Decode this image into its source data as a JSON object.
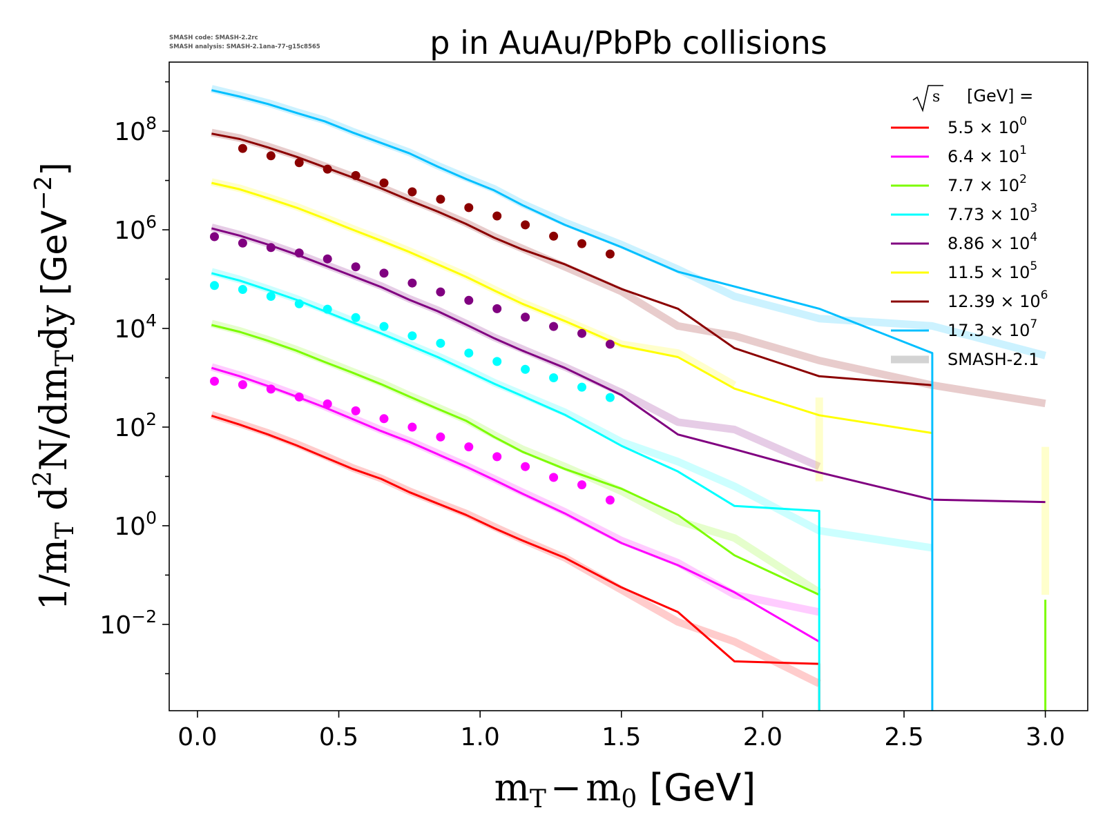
{
  "figure": {
    "version_lines": [
      "SMASH code:      SMASH-2.2rc",
      "SMASH analysis: SMASH-2.1ana-77-g15c8565"
    ]
  },
  "chart_data": {
    "type": "line",
    "title": "p in AuAu/PbPb collisions",
    "xlabel": "m_T − m_0 [GeV]",
    "ylabel": "1/m_T d²N/dm_T dy [GeV⁻²]",
    "xlabel_parts": {
      "main": "m",
      "sub1": "T",
      "minus": "−",
      "sub2_base": "m",
      "sub2": "0",
      "unit": "[GeV]"
    },
    "ylabel_parts": {
      "prefix": "1/m",
      "sub": "T",
      "d": " d",
      "sup": "2",
      "mid": "N/dm",
      "sub2": "T",
      "tail": "dy",
      "unit": "[GeV",
      "unit_sup": "−2",
      "unit_close": "]"
    },
    "xlim": [
      -0.1,
      3.15
    ],
    "ylim_log10": [
      -3.75,
      9.4
    ],
    "y_scale": "log",
    "xticks": [
      0.0,
      0.5,
      1.0,
      1.5,
      2.0,
      2.5,
      3.0
    ],
    "xtick_labels": [
      "0.0",
      "0.5",
      "1.0",
      "1.5",
      "2.0",
      "2.5",
      "3.0"
    ],
    "yticks_log10": [
      -2,
      0,
      2,
      4,
      6,
      8
    ],
    "ytick_labels": [
      {
        "base": "10",
        "exp": "−2"
      },
      {
        "base": "10",
        "exp": "0"
      },
      {
        "base": "10",
        "exp": "2"
      },
      {
        "base": "10",
        "exp": "4"
      },
      {
        "base": "10",
        "exp": "6"
      },
      {
        "base": "10",
        "exp": "8"
      }
    ],
    "grid": false,
    "legend": {
      "placement": "top-right",
      "header": "[GeV] =",
      "header_sqrt": "s",
      "entries": [
        {
          "base": "5.5",
          "times": "×",
          "pow": "10",
          "exp": "0",
          "color": "#ff0000"
        },
        {
          "base": "6.4",
          "times": "×",
          "pow": "10",
          "exp": "1",
          "color": "#ff00ff"
        },
        {
          "base": "7.7",
          "times": "×",
          "pow": "10",
          "exp": "2",
          "color": "#7cfc00"
        },
        {
          "base": "7.73",
          "times": "×",
          "pow": "10",
          "exp": "3",
          "color": "#00ffff"
        },
        {
          "base": "8.86",
          "times": "×",
          "pow": "10",
          "exp": "4",
          "color": "#800080"
        },
        {
          "base": "11.5",
          "times": "×",
          "pow": "10",
          "exp": "5",
          "color": "#ffff00"
        },
        {
          "base": "12.39",
          "times": "×",
          "pow": "10",
          "exp": "6",
          "color": "#8b0000"
        },
        {
          "base": "17.3",
          "times": "×",
          "pow": "10",
          "exp": "7",
          "color": "#00bfff"
        }
      ],
      "smash_entry": {
        "label": "SMASH-2.1",
        "color": "#c8c8c8"
      }
    },
    "series": [
      {
        "color": "#ff0000",
        "sim_x": [
          0.05,
          0.15,
          0.25,
          0.35,
          0.45,
          0.55,
          0.65,
          0.75,
          0.85,
          0.95,
          1.05,
          1.15,
          1.3,
          1.5,
          1.7,
          1.9,
          2.2
        ],
        "sim_log10": [
          2.23,
          2.05,
          1.85,
          1.63,
          1.39,
          1.15,
          0.95,
          0.68,
          0.45,
          0.22,
          -0.05,
          -0.3,
          -0.65,
          -1.25,
          -1.75,
          -2.75,
          -2.8
        ],
        "sim_drop_to_bottom": true,
        "ref_x": [
          0.05,
          0.15,
          0.25,
          0.35,
          0.45,
          0.55,
          0.65,
          0.75,
          0.85,
          0.95,
          1.05,
          1.15,
          1.3,
          1.5,
          1.7,
          1.9,
          2.2
        ],
        "ref_log10": [
          2.25,
          2.07,
          1.88,
          1.66,
          1.42,
          1.17,
          0.96,
          0.7,
          0.47,
          0.25,
          -0.02,
          -0.28,
          -0.65,
          -1.3,
          -1.95,
          -2.35,
          -3.2
        ],
        "data_x": [],
        "data_log10": []
      },
      {
        "color": "#ff00ff",
        "sim_x": [
          0.05,
          0.15,
          0.25,
          0.35,
          0.45,
          0.55,
          0.65,
          0.75,
          0.85,
          0.95,
          1.05,
          1.15,
          1.3,
          1.5,
          1.7,
          1.9,
          2.2
        ],
        "sim_log10": [
          3.2,
          3.03,
          2.83,
          2.62,
          2.4,
          2.16,
          1.92,
          1.7,
          1.45,
          1.2,
          0.93,
          0.65,
          0.25,
          -0.35,
          -0.8,
          -1.35,
          -2.35
        ],
        "ref_x": [
          0.05,
          0.15,
          0.25,
          0.35,
          0.45,
          0.55,
          0.65,
          0.75,
          0.85,
          0.95,
          1.05,
          1.15,
          1.3,
          1.5,
          1.7,
          1.9,
          2.2
        ],
        "ref_log10": [
          3.22,
          3.05,
          2.86,
          2.65,
          2.42,
          2.18,
          1.94,
          1.72,
          1.47,
          1.22,
          0.95,
          0.68,
          0.28,
          -0.3,
          -0.75,
          -1.4,
          -1.75
        ],
        "data_x": [
          0.06,
          0.16,
          0.26,
          0.36,
          0.46,
          0.56,
          0.66,
          0.76,
          0.86,
          0.96,
          1.06,
          1.16,
          1.26,
          1.36,
          1.46
        ],
        "data_log10": [
          2.93,
          2.86,
          2.77,
          2.61,
          2.47,
          2.33,
          2.17,
          2.0,
          1.8,
          1.6,
          1.4,
          1.2,
          0.98,
          0.83,
          0.52
        ]
      },
      {
        "color": "#7cfc00",
        "sim_x": [
          0.05,
          0.15,
          0.25,
          0.35,
          0.45,
          0.55,
          0.65,
          0.75,
          0.85,
          0.95,
          1.05,
          1.15,
          1.3,
          1.5,
          1.7,
          1.9,
          2.2
        ],
        "sim_log10": [
          4.07,
          3.93,
          3.75,
          3.55,
          3.32,
          3.1,
          2.87,
          2.62,
          2.37,
          2.13,
          1.8,
          1.5,
          1.15,
          0.75,
          0.22,
          -0.6,
          -1.4
        ],
        "ref_x": [
          0.05,
          0.15,
          0.25,
          0.35,
          0.45,
          0.55,
          0.65,
          0.75,
          0.85,
          0.95,
          1.05,
          1.15,
          1.3,
          1.5,
          1.7,
          1.9,
          2.2
        ],
        "ref_log10": [
          4.1,
          3.95,
          3.77,
          3.57,
          3.35,
          3.12,
          2.9,
          2.64,
          2.4,
          2.15,
          1.84,
          1.55,
          1.2,
          0.7,
          0.1,
          -0.25,
          -1.35
        ],
        "extra_vertical": {
          "x": 3.0,
          "from_log10": -1.5,
          "to_log10": -3.75
        },
        "data_x": [],
        "data_log10": []
      },
      {
        "color": "#00ffff",
        "sim_x": [
          0.05,
          0.15,
          0.25,
          0.35,
          0.45,
          0.55,
          0.65,
          0.75,
          0.85,
          0.95,
          1.05,
          1.15,
          1.3,
          1.5,
          1.7,
          1.9,
          2.2
        ],
        "sim_log10": [
          5.12,
          4.97,
          4.78,
          4.58,
          4.35,
          4.12,
          3.9,
          3.66,
          3.42,
          3.15,
          2.88,
          2.63,
          2.25,
          1.62,
          1.1,
          0.4,
          0.3
        ],
        "sim_drop_to_bottom": true,
        "ref_x": [
          0.05,
          0.15,
          0.25,
          0.35,
          0.45,
          0.55,
          0.65,
          0.75,
          0.85,
          0.95,
          1.05,
          1.15,
          1.3,
          1.5,
          1.7,
          1.9,
          2.2,
          2.6
        ],
        "ref_log10": [
          5.15,
          4.99,
          4.8,
          4.6,
          4.38,
          4.15,
          3.93,
          3.68,
          3.44,
          3.18,
          2.9,
          2.66,
          2.3,
          1.7,
          1.3,
          0.8,
          -0.1,
          -0.45
        ],
        "data_x": [
          0.06,
          0.16,
          0.26,
          0.36,
          0.46,
          0.56,
          0.66,
          0.76,
          0.86,
          0.96,
          1.06,
          1.16,
          1.26,
          1.36,
          1.46
        ],
        "data_log10": [
          4.87,
          4.79,
          4.65,
          4.5,
          4.39,
          4.22,
          4.04,
          3.85,
          3.7,
          3.5,
          3.33,
          3.17,
          3.0,
          2.81,
          2.6
        ]
      },
      {
        "color": "#800080",
        "sim_x": [
          0.05,
          0.15,
          0.25,
          0.35,
          0.45,
          0.55,
          0.65,
          0.75,
          0.85,
          0.95,
          1.05,
          1.15,
          1.3,
          1.5,
          1.7,
          1.9,
          2.2,
          2.6,
          3.0
        ],
        "sim_log10": [
          6.03,
          5.88,
          5.7,
          5.5,
          5.28,
          5.06,
          4.84,
          4.58,
          4.35,
          4.08,
          3.8,
          3.55,
          3.2,
          2.65,
          1.85,
          1.55,
          1.08,
          0.53,
          0.48
        ],
        "ref_x": [
          0.05,
          0.15,
          0.25,
          0.35,
          0.45,
          0.55,
          0.65,
          0.75,
          0.85,
          0.95,
          1.05,
          1.15,
          1.3,
          1.5,
          1.7,
          1.9,
          2.2
        ],
        "ref_log10": [
          6.05,
          5.9,
          5.72,
          5.52,
          5.3,
          5.08,
          4.86,
          4.6,
          4.37,
          4.1,
          3.82,
          3.58,
          3.22,
          2.7,
          2.1,
          1.95,
          1.2
        ],
        "data_x": [
          0.06,
          0.16,
          0.26,
          0.36,
          0.46,
          0.56,
          0.66,
          0.76,
          0.86,
          0.96,
          1.06,
          1.16,
          1.26,
          1.36,
          1.46
        ],
        "data_log10": [
          5.86,
          5.73,
          5.64,
          5.53,
          5.41,
          5.25,
          5.12,
          4.92,
          4.74,
          4.57,
          4.4,
          4.23,
          4.04,
          3.9,
          3.68
        ]
      },
      {
        "color": "#ffff00",
        "sim_x": [
          0.05,
          0.15,
          0.25,
          0.35,
          0.45,
          0.55,
          0.65,
          0.75,
          0.85,
          0.95,
          1.05,
          1.15,
          1.3,
          1.5,
          1.7,
          1.9,
          2.2,
          2.6
        ],
        "sim_log10": [
          6.95,
          6.82,
          6.64,
          6.45,
          6.23,
          6.0,
          5.78,
          5.55,
          5.3,
          5.05,
          4.77,
          4.5,
          4.15,
          3.65,
          3.42,
          2.78,
          2.24,
          1.88
        ],
        "ref_x": [
          0.05,
          0.15,
          0.25,
          0.35,
          0.45,
          0.55,
          0.65,
          0.75,
          0.85,
          0.95,
          1.05,
          1.15,
          1.3,
          1.5,
          1.7,
          1.9
        ],
        "ref_log10": [
          6.97,
          6.84,
          6.66,
          6.47,
          6.25,
          6.02,
          5.8,
          5.57,
          5.32,
          5.07,
          4.79,
          4.52,
          4.17,
          3.68,
          3.5,
          2.85
        ],
        "ghost_verticals": [
          {
            "x": 2.2,
            "from_log10": 2.6,
            "to_log10": 0.9
          },
          {
            "x": 3.0,
            "from_log10": 1.6,
            "to_log10": -1.4
          }
        ],
        "data_x": [],
        "data_log10": []
      },
      {
        "color": "#8b0000",
        "sim_x": [
          0.05,
          0.15,
          0.25,
          0.35,
          0.45,
          0.55,
          0.65,
          0.75,
          0.85,
          0.95,
          1.05,
          1.15,
          1.3,
          1.5,
          1.7,
          1.9,
          2.2,
          2.6
        ],
        "sim_log10": [
          7.95,
          7.84,
          7.67,
          7.48,
          7.27,
          7.06,
          6.84,
          6.6,
          6.37,
          6.12,
          5.84,
          5.6,
          5.3,
          4.8,
          4.4,
          3.6,
          3.03,
          2.85
        ],
        "ref_x": [
          0.05,
          0.15,
          0.25,
          0.35,
          0.45,
          0.55,
          0.65,
          0.75,
          0.85,
          0.95,
          1.05,
          1.15,
          1.3,
          1.5,
          1.7,
          1.9,
          2.2,
          2.6,
          3.0
        ],
        "ref_log10": [
          7.97,
          7.86,
          7.69,
          7.5,
          7.29,
          7.08,
          6.86,
          6.62,
          6.39,
          6.14,
          5.86,
          5.62,
          5.25,
          4.75,
          4.05,
          3.85,
          3.35,
          2.85,
          2.48
        ],
        "data_x": [
          0.16,
          0.26,
          0.36,
          0.46,
          0.56,
          0.66,
          0.76,
          0.86,
          0.96,
          1.06,
          1.16,
          1.26,
          1.36,
          1.46
        ],
        "data_log10": [
          7.65,
          7.5,
          7.36,
          7.23,
          7.1,
          6.95,
          6.77,
          6.62,
          6.45,
          6.28,
          6.1,
          5.87,
          5.72,
          5.51
        ]
      },
      {
        "color": "#00bfff",
        "sim_x": [
          0.05,
          0.15,
          0.25,
          0.35,
          0.45,
          0.55,
          0.65,
          0.75,
          0.85,
          0.95,
          1.05,
          1.15,
          1.3,
          1.5,
          1.7,
          1.9,
          2.2,
          2.6
        ],
        "sim_log10": [
          8.83,
          8.7,
          8.55,
          8.37,
          8.2,
          7.97,
          7.76,
          7.55,
          7.28,
          7.03,
          6.8,
          6.5,
          6.1,
          5.65,
          5.15,
          4.85,
          4.4,
          3.5
        ],
        "sim_drop_to_bottom": true,
        "ref_x": [
          0.05,
          0.15,
          0.25,
          0.35,
          0.45,
          0.55,
          0.65,
          0.75,
          0.85,
          0.95,
          1.05,
          1.15,
          1.3,
          1.5,
          1.7,
          1.9,
          2.2,
          2.6,
          3.0
        ],
        "ref_log10": [
          8.86,
          8.72,
          8.57,
          8.39,
          8.22,
          7.99,
          7.78,
          7.57,
          7.3,
          7.06,
          6.83,
          6.53,
          6.15,
          5.7,
          5.2,
          4.65,
          4.2,
          4.05,
          3.45
        ],
        "data_x": [],
        "data_log10": []
      }
    ]
  }
}
